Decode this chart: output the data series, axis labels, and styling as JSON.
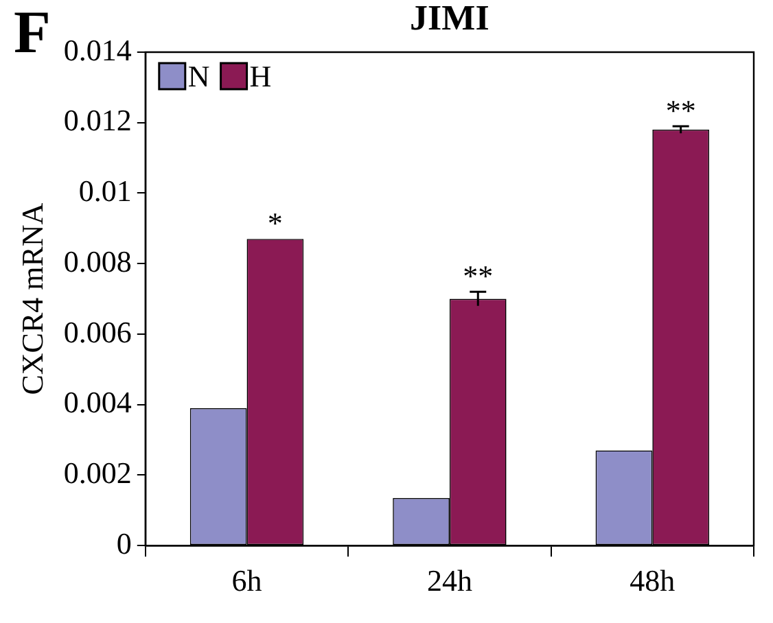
{
  "chart_data": {
    "type": "bar",
    "title": "JIMI",
    "ylabel": "CXCR4 mRNA",
    "categories": [
      "6h",
      "24h",
      "48h"
    ],
    "series": [
      {
        "name": "N",
        "color": "#8e8ec8",
        "values": [
          0.0039,
          0.00135,
          0.0027
        ]
      },
      {
        "name": "H",
        "color": "#8b1a54",
        "values": [
          0.0087,
          0.007,
          0.0118
        ],
        "errors": [
          null,
          0.0002,
          0.0001
        ]
      }
    ],
    "ylim": [
      0,
      0.014
    ],
    "yticks": [
      0,
      0.002,
      0.004,
      0.006,
      0.008,
      0.01,
      0.012,
      0.014
    ],
    "grid": false,
    "legend": "top left",
    "annotations": [
      "F",
      {
        "text": "*",
        "x": "6h",
        "y": 0.0087
      },
      {
        "text": "**",
        "x": "24h",
        "y": 0.007
      },
      {
        "text": "**",
        "x": "48h",
        "y": 0.0118
      }
    ]
  }
}
